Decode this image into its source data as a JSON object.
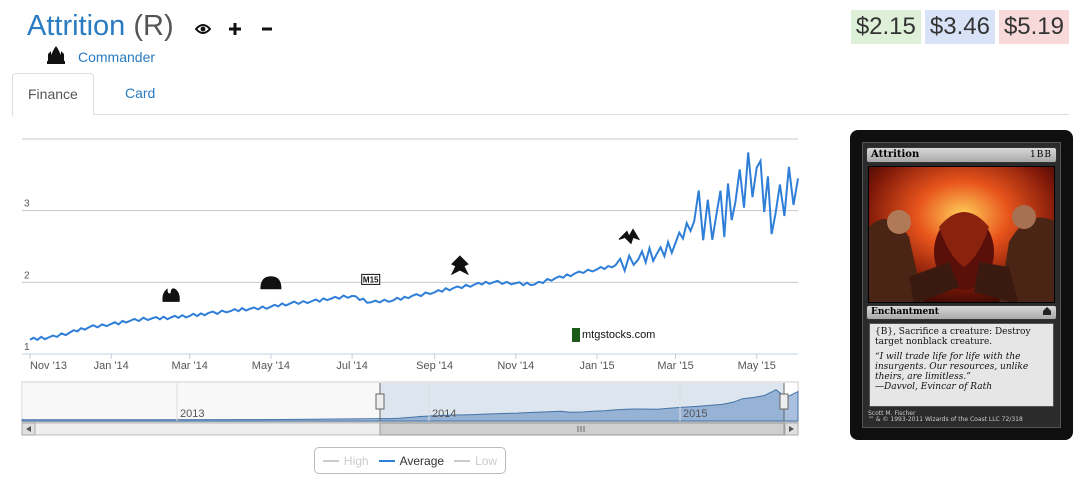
{
  "header": {
    "card_name": "Attrition",
    "rarity": "(R)",
    "icons": [
      "eye-icon",
      "plus-icon",
      "minus-icon"
    ],
    "set_name": "Commander",
    "set_icon": "commander-set-icon"
  },
  "prices": {
    "low": "$2.15",
    "average": "$3.46",
    "high": "$5.19",
    "colors": {
      "low": "#dff0d8",
      "average": "#d9e3f7",
      "high": "#f7d9d9"
    }
  },
  "tabs": [
    {
      "label": "Finance",
      "active": true
    },
    {
      "label": "Card",
      "active": false
    }
  ],
  "chart_data": {
    "type": "line",
    "ylim": [
      1,
      4
    ],
    "yticks": [
      "1",
      "2",
      "3"
    ],
    "xtick_labels": [
      "Nov '13",
      "Jan '14",
      "Mar '14",
      "May '14",
      "Jul '14",
      "Sep '14",
      "Nov '14",
      "Jan '15",
      "Mar '15",
      "May '15"
    ],
    "navigator_labels": [
      "2013",
      "2014",
      "2015"
    ],
    "watermark": "mtgstocks.com",
    "line_color": "#2f7ed8",
    "series": [
      {
        "name": "Average",
        "x": [
          "2013-11-01",
          "2013-11-15",
          "2013-12-01",
          "2013-12-15",
          "2014-01-01",
          "2014-01-15",
          "2014-02-01",
          "2014-02-15",
          "2014-03-01",
          "2014-03-15",
          "2014-04-01",
          "2014-04-15",
          "2014-05-01",
          "2014-05-15",
          "2014-06-01",
          "2014-06-15",
          "2014-07-01",
          "2014-07-15",
          "2014-08-01",
          "2014-08-15",
          "2014-09-01",
          "2014-09-15",
          "2014-10-01",
          "2014-10-15",
          "2014-11-01",
          "2014-11-15",
          "2014-12-01",
          "2014-12-15",
          "2015-01-01",
          "2015-01-15",
          "2015-02-01",
          "2015-02-15",
          "2015-03-01",
          "2015-03-15",
          "2015-04-01",
          "2015-04-15",
          "2015-05-01",
          "2015-05-15",
          "2015-06-01"
        ],
        "values": [
          1.2,
          1.23,
          1.3,
          1.37,
          1.42,
          1.46,
          1.5,
          1.51,
          1.53,
          1.57,
          1.6,
          1.63,
          1.66,
          1.7,
          1.74,
          1.77,
          1.81,
          1.72,
          1.75,
          1.81,
          1.86,
          1.92,
          1.97,
          2.0,
          1.99,
          1.97,
          2.06,
          2.12,
          2.18,
          2.24,
          2.32,
          2.4,
          2.55,
          2.85,
          2.98,
          3.12,
          3.6,
          2.95,
          3.45
        ]
      },
      {
        "name": "High",
        "visible": false
      },
      {
        "name": "Low",
        "visible": false
      }
    ],
    "events": [
      {
        "date": "2014-02-15",
        "icon": "set-symbol-born-of-the-gods-icon"
      },
      {
        "date": "2014-05-01",
        "icon": "set-symbol-journey-into-nyx-icon"
      },
      {
        "date": "2014-07-15",
        "icon": "set-symbol-m15-icon",
        "text": "M15"
      },
      {
        "date": "2014-09-20",
        "icon": "set-symbol-khans-of-tarkir-icon"
      },
      {
        "date": "2015-01-25",
        "icon": "set-symbol-fate-reforged-icon"
      }
    ]
  },
  "legend": {
    "items": [
      {
        "label": "High",
        "on": false
      },
      {
        "label": "Average",
        "on": true
      },
      {
        "label": "Low",
        "on": false
      }
    ]
  },
  "card": {
    "name": "Attrition",
    "mana_cost": "1BB",
    "type_line": "Enchantment",
    "rules_text": "{B}, Sacrifice a creature: Destroy target nonblack creature.",
    "flavor_text": "“I will trade life for life with the insurgents. Our resources, unlike theirs, are limitless.”",
    "flavor_attribution": "—Davvol, Evincar of Rath",
    "artist": "Scott M. Fischer",
    "copyright": "™ & © 1993-2011 Wizards of the Coast LLC 72/318"
  }
}
